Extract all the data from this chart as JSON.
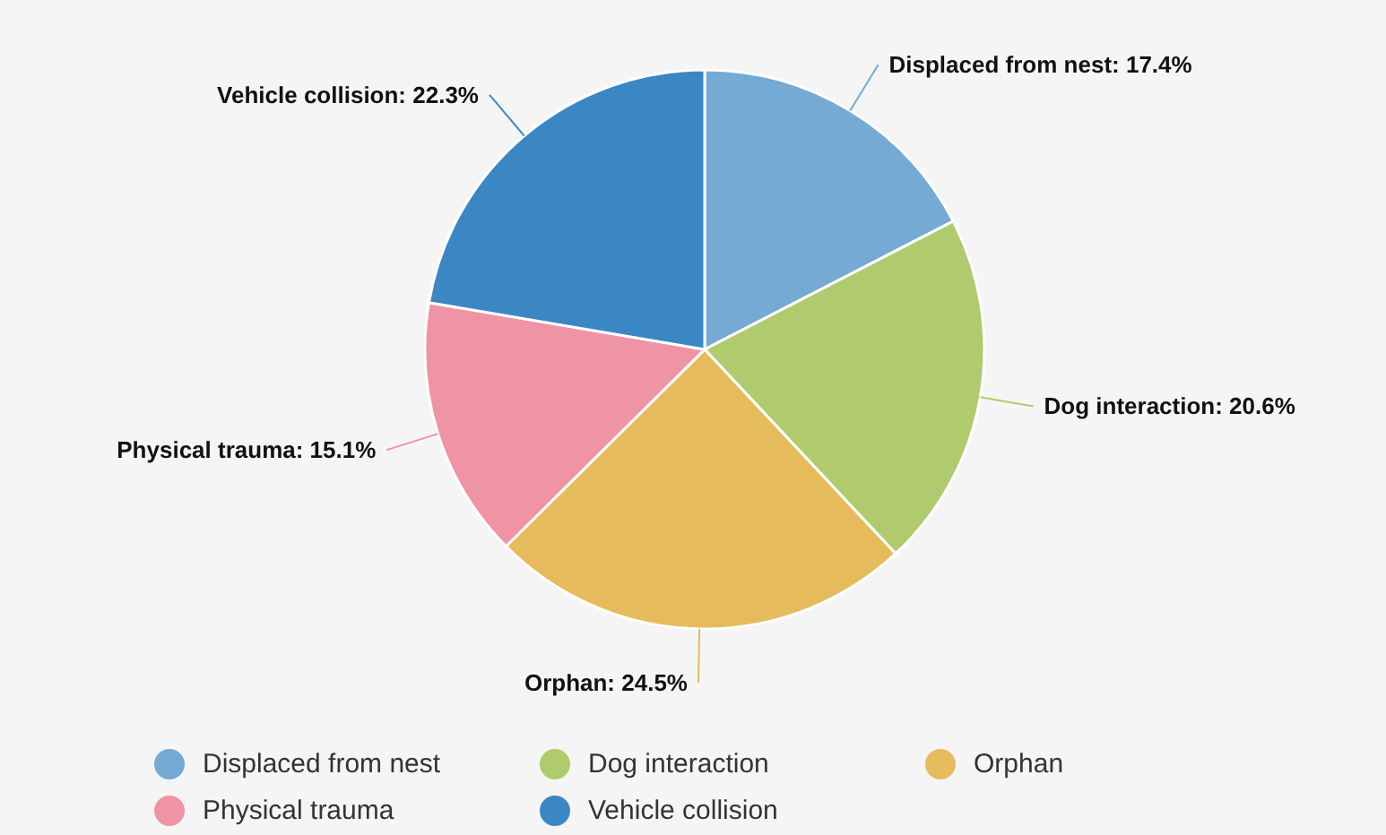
{
  "chart_data": {
    "type": "pie",
    "categories": [
      "Displaced from nest",
      "Dog interaction",
      "Orphan",
      "Physical trauma",
      "Vehicle collision"
    ],
    "values": [
      17.4,
      20.6,
      24.5,
      15.1,
      22.3
    ],
    "colors": [
      "#74aad4",
      "#b0cb6e",
      "#e6bb5c",
      "#ef94a4",
      "#3a87c3"
    ],
    "value_labels": [
      "Displaced from nest: 17.4%",
      "Dog interaction: 20.6%",
      "Orphan: 24.5%",
      "Physical trauma: 15.1%",
      "Vehicle collision: 22.3%"
    ],
    "legend": "bottom"
  }
}
